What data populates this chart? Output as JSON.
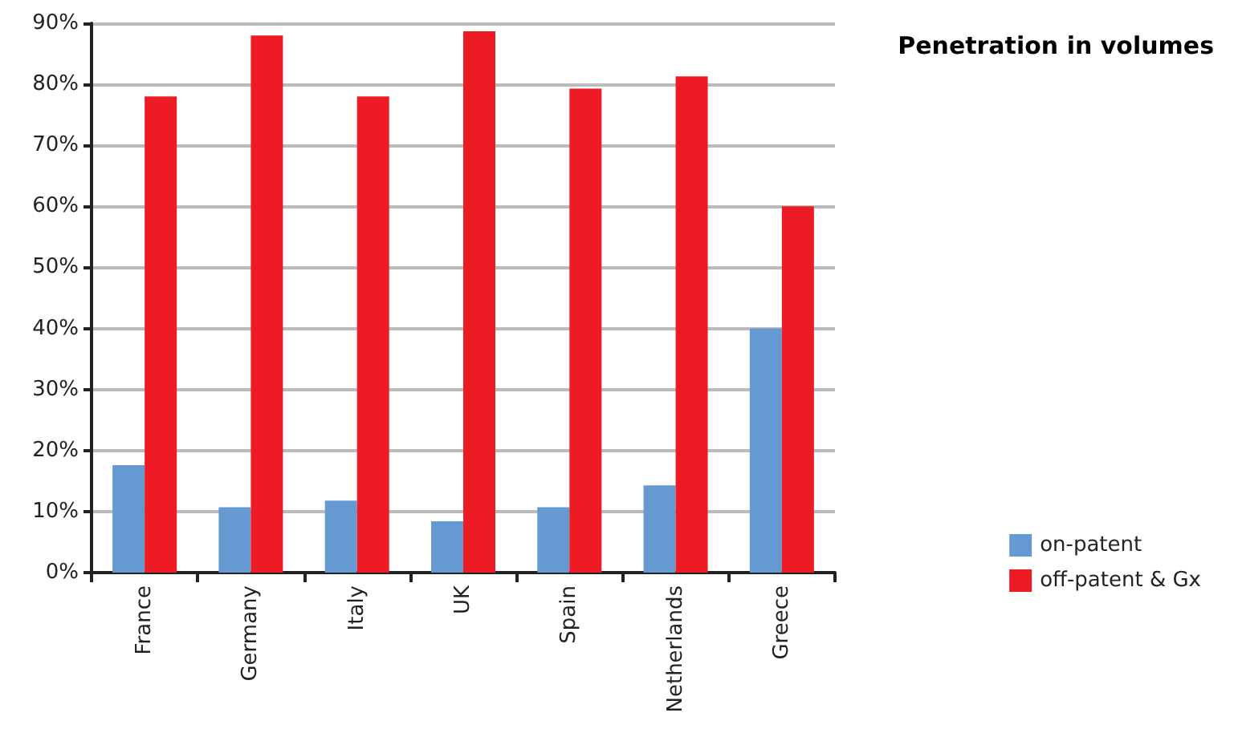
{
  "chart_data": {
    "type": "bar",
    "title": "Penetration in volumes",
    "categories": [
      "France",
      "Germany",
      "Italy",
      "UK",
      "Spain",
      "Netherlands",
      "Greece"
    ],
    "series": [
      {
        "name": "on-patent",
        "color": "#6699d1",
        "values": [
          17.6,
          10.7,
          11.8,
          8.4,
          10.7,
          14.3,
          40
        ]
      },
      {
        "name": "off-patent & Gx",
        "color": "#ed1c24",
        "values": [
          78,
          88,
          78,
          88.7,
          79.3,
          81.3,
          60
        ]
      }
    ],
    "ylim": [
      0,
      90
    ],
    "yticks": [
      {
        "value": 0,
        "label": "0%"
      },
      {
        "value": 10,
        "label": "10%"
      },
      {
        "value": 20,
        "label": "20%"
      },
      {
        "value": 30,
        "label": "30%"
      },
      {
        "value": 40,
        "label": "40%"
      },
      {
        "value": 50,
        "label": "50%"
      },
      {
        "value": 60,
        "label": "60%"
      },
      {
        "value": 70,
        "label": "70%"
      },
      {
        "value": 80,
        "label": "80%"
      },
      {
        "value": 90,
        "label": "90%"
      }
    ],
    "grid": "y",
    "legend": "bottom right"
  }
}
